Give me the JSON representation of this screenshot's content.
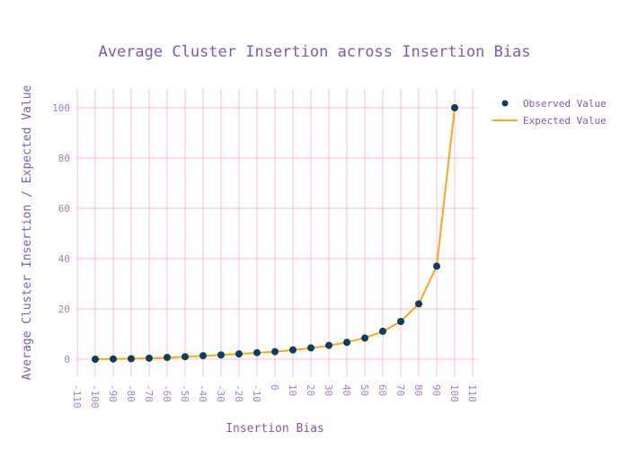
{
  "chart_data": {
    "type": "scatter",
    "title": "Average Cluster Insertion across Insertion Bias",
    "xlabel": "Insertion Bias",
    "ylabel": "Average Cluster Insertion / Expected Value",
    "xlim": [
      -110,
      110
    ],
    "ylim": [
      -7,
      107
    ],
    "x_ticks": [
      -110,
      -100,
      -90,
      -80,
      -70,
      -60,
      -50,
      -40,
      -30,
      -20,
      -10,
      0,
      10,
      20,
      30,
      40,
      50,
      60,
      70,
      80,
      90,
      100,
      110
    ],
    "y_ticks": [
      0,
      20,
      40,
      60,
      80,
      100
    ],
    "grid": true,
    "legend_position": "top-right",
    "x": [
      -100,
      -90,
      -80,
      -70,
      -60,
      -50,
      -40,
      -30,
      -20,
      -10,
      0,
      10,
      20,
      30,
      40,
      50,
      60,
      70,
      80,
      90,
      100
    ],
    "series": [
      {
        "name": "Observed Value",
        "mode": "markers",
        "color": "#0b3d5c",
        "values": [
          0,
          0.1,
          0.2,
          0.4,
          0.7,
          1.0,
          1.4,
          1.7,
          2.1,
          2.6,
          3.0,
          3.7,
          4.5,
          5.5,
          6.7,
          8.4,
          11.1,
          15.0,
          22.0,
          37.0,
          100.0
        ]
      },
      {
        "name": "Expected Value",
        "mode": "line",
        "color": "#ffa51f",
        "values": [
          0,
          0.1,
          0.2,
          0.4,
          0.6,
          1.0,
          1.3,
          1.7,
          2.1,
          2.5,
          3.0,
          3.6,
          4.4,
          5.4,
          6.7,
          8.5,
          11.0,
          15.0,
          22.0,
          37.0,
          100.0
        ]
      }
    ],
    "colors": {
      "grid": "#ffc0cb",
      "title": "#7a5bb5",
      "tick": "#9b82c8"
    }
  }
}
